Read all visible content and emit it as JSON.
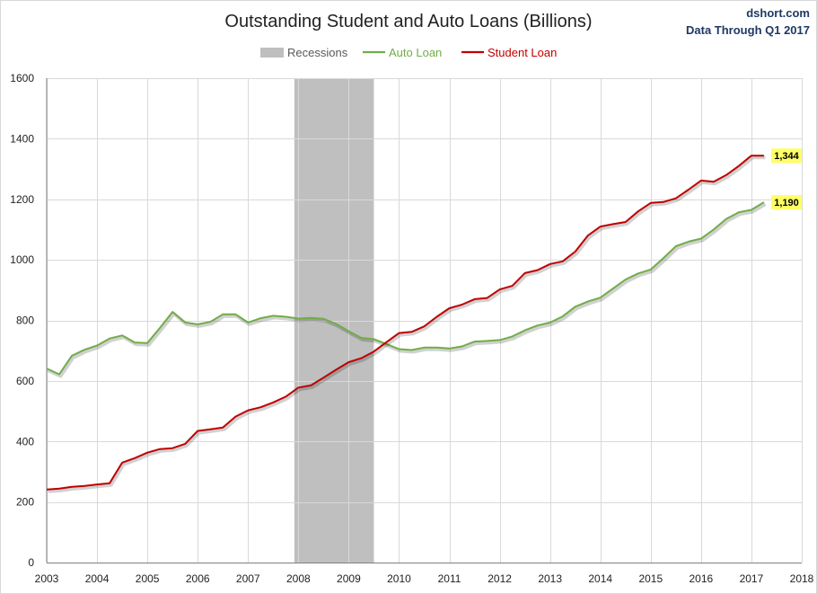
{
  "chart_data": {
    "type": "line",
    "title": "Outstanding Student and Auto Loans (Billions)",
    "brand": "dshort.com",
    "data_through": "Data Through Q1 2017",
    "xlim": [
      2003,
      2018
    ],
    "ylim": [
      0,
      1600
    ],
    "x_ticks": [
      "2003",
      "2004",
      "2005",
      "2006",
      "2007",
      "2008",
      "2009",
      "2010",
      "2011",
      "2012",
      "2013",
      "2014",
      "2015",
      "2016",
      "2017",
      "2018"
    ],
    "y_ticks": [
      "0",
      "200",
      "400",
      "600",
      "800",
      "1000",
      "1200",
      "1400",
      "1600"
    ],
    "grid": true,
    "legend": {
      "placement": "top-center",
      "recession_label": "Recessions"
    },
    "recessions": [
      {
        "start": 2007.92,
        "end": 2009.5
      }
    ],
    "colors": {
      "auto": "#70ad47",
      "student": "#c00000",
      "recession": "#bfbfbf",
      "brand": "#1f3864",
      "label_bg": "#ffff66"
    },
    "series": [
      {
        "name": "Auto Loan",
        "key": "auto",
        "end_label": "1,190",
        "values": [
          [
            2003.0,
            641
          ],
          [
            2003.25,
            622
          ],
          [
            2003.5,
            683
          ],
          [
            2003.75,
            703
          ],
          [
            2004.0,
            717
          ],
          [
            2004.25,
            740
          ],
          [
            2004.5,
            750
          ],
          [
            2004.75,
            727
          ],
          [
            2005.0,
            725
          ],
          [
            2005.25,
            775
          ],
          [
            2005.5,
            828
          ],
          [
            2005.75,
            793
          ],
          [
            2006.0,
            787
          ],
          [
            2006.25,
            795
          ],
          [
            2006.5,
            820
          ],
          [
            2006.75,
            820
          ],
          [
            2007.0,
            793
          ],
          [
            2007.25,
            807
          ],
          [
            2007.5,
            815
          ],
          [
            2007.75,
            812
          ],
          [
            2008.0,
            806
          ],
          [
            2008.25,
            808
          ],
          [
            2008.5,
            805
          ],
          [
            2008.75,
            788
          ],
          [
            2009.0,
            764
          ],
          [
            2009.25,
            742
          ],
          [
            2009.5,
            738
          ],
          [
            2009.75,
            722
          ],
          [
            2010.0,
            705
          ],
          [
            2010.25,
            702
          ],
          [
            2010.5,
            710
          ],
          [
            2010.75,
            710
          ],
          [
            2011.0,
            707
          ],
          [
            2011.25,
            714
          ],
          [
            2011.5,
            730
          ],
          [
            2011.75,
            732
          ],
          [
            2012.0,
            735
          ],
          [
            2012.25,
            747
          ],
          [
            2012.5,
            767
          ],
          [
            2012.75,
            783
          ],
          [
            2013.0,
            793
          ],
          [
            2013.25,
            813
          ],
          [
            2013.5,
            845
          ],
          [
            2013.75,
            862
          ],
          [
            2014.0,
            875
          ],
          [
            2014.25,
            905
          ],
          [
            2014.5,
            935
          ],
          [
            2014.75,
            955
          ],
          [
            2015.0,
            968
          ],
          [
            2015.25,
            1005
          ],
          [
            2015.5,
            1045
          ],
          [
            2015.75,
            1060
          ],
          [
            2016.0,
            1070
          ],
          [
            2016.25,
            1100
          ],
          [
            2016.5,
            1135
          ],
          [
            2016.75,
            1157
          ],
          [
            2017.0,
            1165
          ],
          [
            2017.25,
            1190
          ]
        ]
      },
      {
        "name": "Student Loan",
        "key": "student",
        "end_label": "1,344",
        "values": [
          [
            2003.0,
            241
          ],
          [
            2003.25,
            244
          ],
          [
            2003.5,
            250
          ],
          [
            2003.75,
            253
          ],
          [
            2004.0,
            258
          ],
          [
            2004.25,
            262
          ],
          [
            2004.5,
            330
          ],
          [
            2004.75,
            345
          ],
          [
            2005.0,
            363
          ],
          [
            2005.25,
            375
          ],
          [
            2005.5,
            378
          ],
          [
            2005.75,
            392
          ],
          [
            2006.0,
            435
          ],
          [
            2006.25,
            440
          ],
          [
            2006.5,
            446
          ],
          [
            2006.75,
            482
          ],
          [
            2007.0,
            503
          ],
          [
            2007.25,
            513
          ],
          [
            2007.5,
            529
          ],
          [
            2007.75,
            548
          ],
          [
            2008.0,
            578
          ],
          [
            2008.25,
            585
          ],
          [
            2008.5,
            611
          ],
          [
            2008.75,
            637
          ],
          [
            2009.0,
            662
          ],
          [
            2009.25,
            675
          ],
          [
            2009.5,
            697
          ],
          [
            2009.75,
            728
          ],
          [
            2010.0,
            758
          ],
          [
            2010.25,
            762
          ],
          [
            2010.5,
            780
          ],
          [
            2010.75,
            812
          ],
          [
            2011.0,
            840
          ],
          [
            2011.25,
            852
          ],
          [
            2011.5,
            870
          ],
          [
            2011.75,
            874
          ],
          [
            2012.0,
            902
          ],
          [
            2012.25,
            914
          ],
          [
            2012.5,
            956
          ],
          [
            2012.75,
            966
          ],
          [
            2013.0,
            986
          ],
          [
            2013.25,
            995
          ],
          [
            2013.5,
            1027
          ],
          [
            2013.75,
            1080
          ],
          [
            2014.0,
            1110
          ],
          [
            2014.25,
            1118
          ],
          [
            2014.5,
            1125
          ],
          [
            2014.75,
            1160
          ],
          [
            2015.0,
            1188
          ],
          [
            2015.25,
            1191
          ],
          [
            2015.5,
            1203
          ],
          [
            2015.75,
            1232
          ],
          [
            2016.0,
            1262
          ],
          [
            2016.25,
            1258
          ],
          [
            2016.5,
            1280
          ],
          [
            2016.75,
            1310
          ],
          [
            2017.0,
            1344
          ],
          [
            2017.25,
            1344
          ]
        ]
      }
    ]
  }
}
